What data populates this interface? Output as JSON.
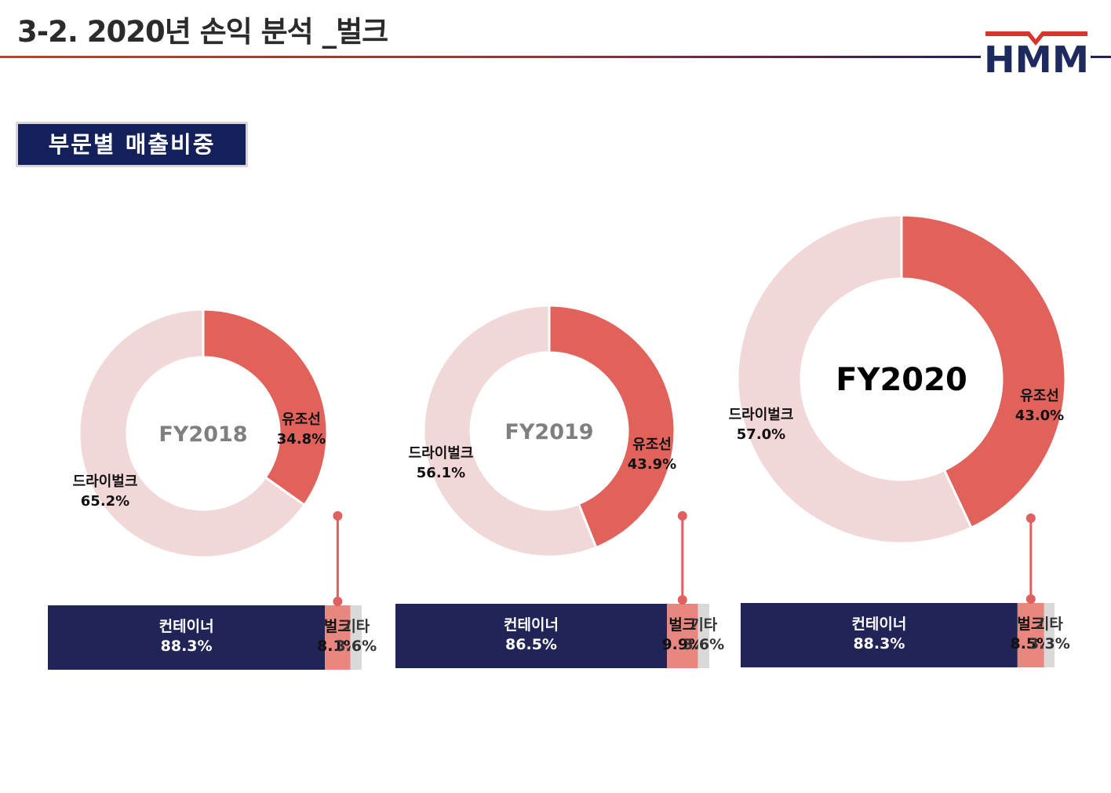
{
  "header": {
    "title": "3-2. 2020년 손익 분석 _벌크",
    "logo_text": "HMM"
  },
  "section_tag": "부문별 매출비중",
  "colors": {
    "tanker": "#e0625a",
    "dry_bulk": "#f2d7d8",
    "container": "#212456",
    "bulk": "#e8877f",
    "other": "#d9d9d9",
    "connector": "#e06060",
    "logo_navy": "#1e2a5e",
    "logo_red": "#d8342b"
  },
  "chart_data": [
    {
      "type": "pie",
      "center_label": "FY2018",
      "slices": [
        {
          "name": "유조선",
          "value": 34.8,
          "label": "34.8%"
        },
        {
          "name": "드라이벌크",
          "value": 65.2,
          "label": "65.2%"
        }
      ],
      "breakdown": [
        {
          "name": "컨테이너",
          "value": 88.3,
          "label": "88.3%"
        },
        {
          "name": "벌크",
          "value": 8.1,
          "label": "8.1%"
        },
        {
          "name": "기타",
          "value": 3.6,
          "label": "3.6%"
        }
      ]
    },
    {
      "type": "pie",
      "center_label": "FY2019",
      "slices": [
        {
          "name": "유조선",
          "value": 43.9,
          "label": "43.9%"
        },
        {
          "name": "드라이벌크",
          "value": 56.1,
          "label": "56.1%"
        }
      ],
      "breakdown": [
        {
          "name": "컨테이너",
          "value": 86.5,
          "label": "86.5%"
        },
        {
          "name": "벌크",
          "value": 9.9,
          "label": "9.9%"
        },
        {
          "name": "기타",
          "value": 3.6,
          "label": "3.6%"
        }
      ]
    },
    {
      "type": "pie",
      "center_label": "FY2020",
      "slices": [
        {
          "name": "유조선",
          "value": 43.0,
          "label": "43.0%"
        },
        {
          "name": "드라이벌크",
          "value": 57.0,
          "label": "57.0%"
        }
      ],
      "breakdown": [
        {
          "name": "컨테이너",
          "value": 88.3,
          "label": "88.3%"
        },
        {
          "name": "벌크",
          "value": 8.5,
          "label": "8.5%"
        },
        {
          "name": "기타",
          "value": 3.3,
          "label": "3.3%"
        }
      ]
    }
  ]
}
